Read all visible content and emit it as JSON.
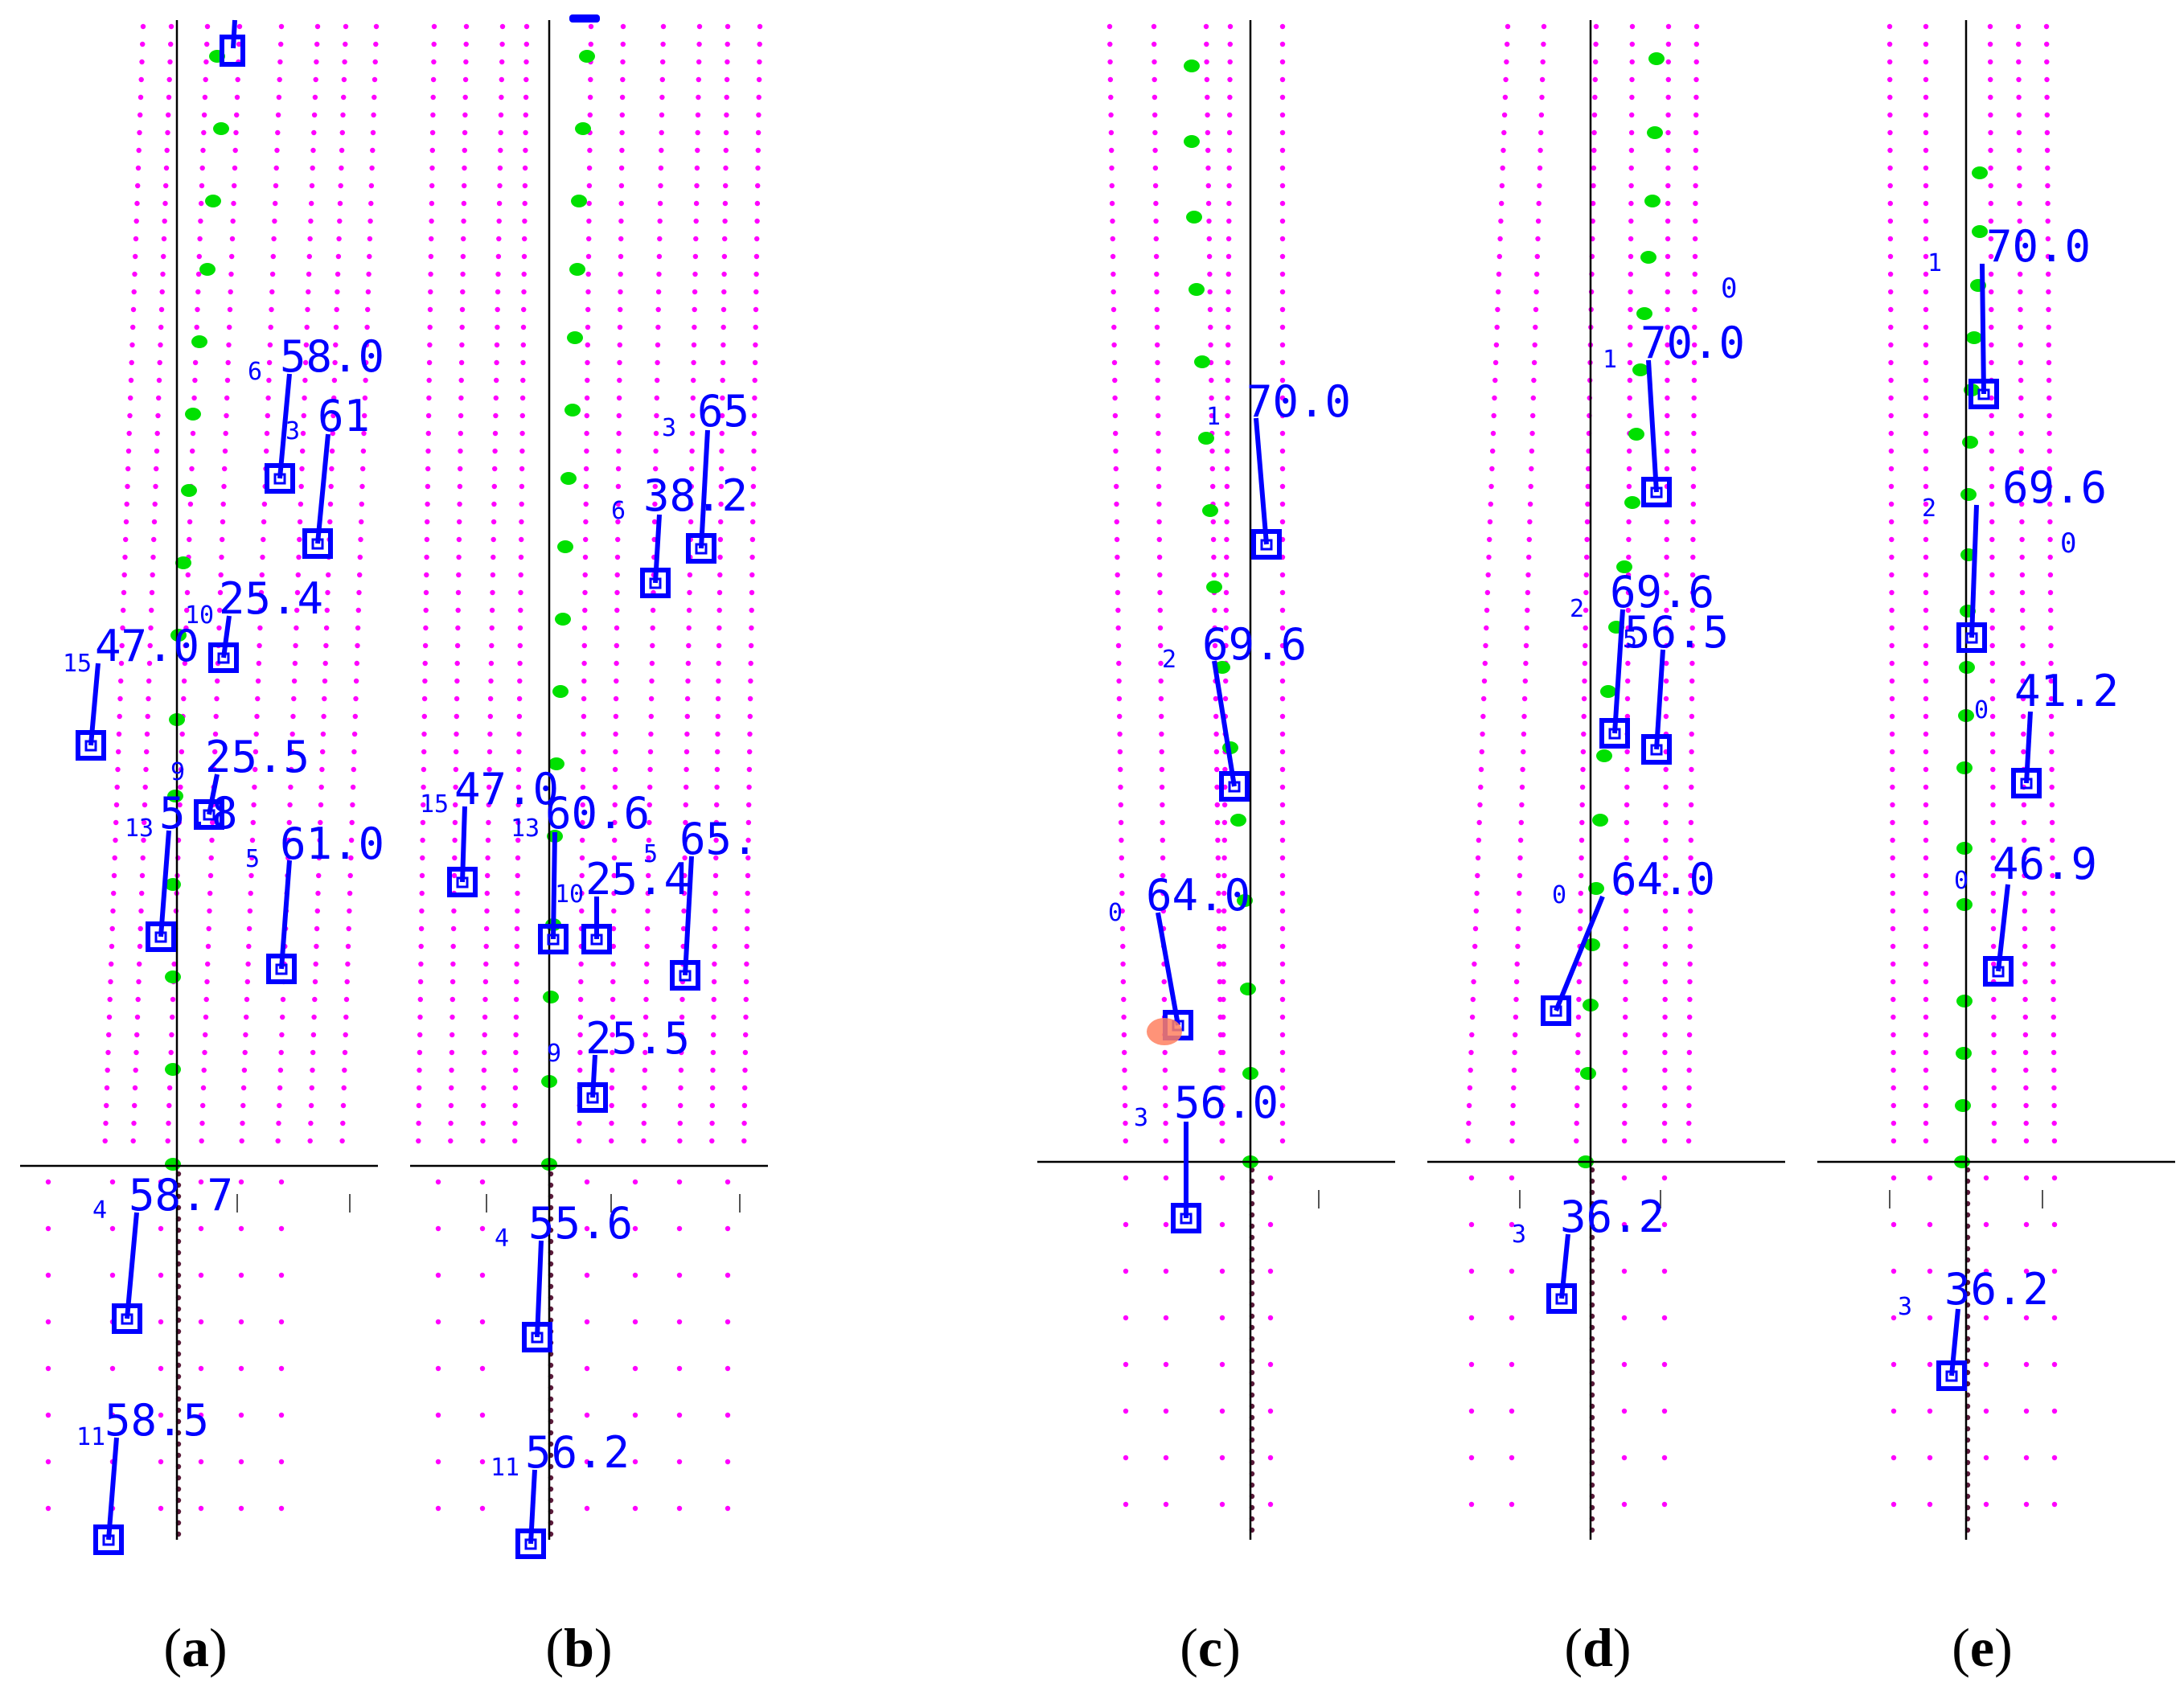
{
  "colors": {
    "grid": "#ff00ff",
    "lane": "#00e000",
    "track": "#0000ff",
    "axis": "#000000",
    "trail": "#5a1a3a",
    "marker": "#ff8060"
  },
  "panels": [
    {
      "caption": "a",
      "tracks": [
        {
          "id": "6",
          "value": "58.0"
        },
        {
          "id": "3",
          "value": "61"
        },
        {
          "id": "10",
          "value": "25.4"
        },
        {
          "id": "15",
          "value": "47.0"
        },
        {
          "id": "9",
          "value": "25.5"
        },
        {
          "id": "13",
          "value": "5.8"
        },
        {
          "id": "5",
          "value": "61.0"
        },
        {
          "id": "4",
          "value": "58.7"
        },
        {
          "id": "11",
          "value": "58.5"
        }
      ]
    },
    {
      "caption": "b",
      "tracks": [
        {
          "id": "3",
          "value": "65"
        },
        {
          "id": "6",
          "value": "38.2"
        },
        {
          "id": "15",
          "value": "47.0"
        },
        {
          "id": "13",
          "value": "60.6"
        },
        {
          "id": "10",
          "value": "25.4"
        },
        {
          "id": "5",
          "value": "65."
        },
        {
          "id": "9",
          "value": "25.5"
        },
        {
          "id": "4",
          "value": "55.6"
        },
        {
          "id": "11",
          "value": "56.2"
        }
      ]
    },
    {
      "caption": "c",
      "tracks": [
        {
          "id": "1",
          "value": "70.0"
        },
        {
          "id": "2",
          "value": "69.6"
        },
        {
          "id": "0",
          "value": "64.0"
        },
        {
          "id": "3",
          "value": "56.0"
        }
      ]
    },
    {
      "caption": "d",
      "tracks": [
        {
          "id": "0",
          "value": ""
        },
        {
          "id": "1",
          "value": "70.0"
        },
        {
          "id": "2",
          "value": "69.6"
        },
        {
          "id": "5",
          "value": "56.5"
        },
        {
          "id": "0",
          "value": "64.0"
        },
        {
          "id": "3",
          "value": "36.2"
        }
      ]
    },
    {
      "caption": "e",
      "tracks": [
        {
          "id": "1",
          "value": "70.0"
        },
        {
          "id": "2",
          "value": "69.6"
        },
        {
          "id": "0",
          "value": ""
        },
        {
          "id": "0",
          "value": "41.2"
        },
        {
          "id": "0",
          "value": "46.9"
        },
        {
          "id": "3",
          "value": "36.2"
        }
      ]
    }
  ]
}
